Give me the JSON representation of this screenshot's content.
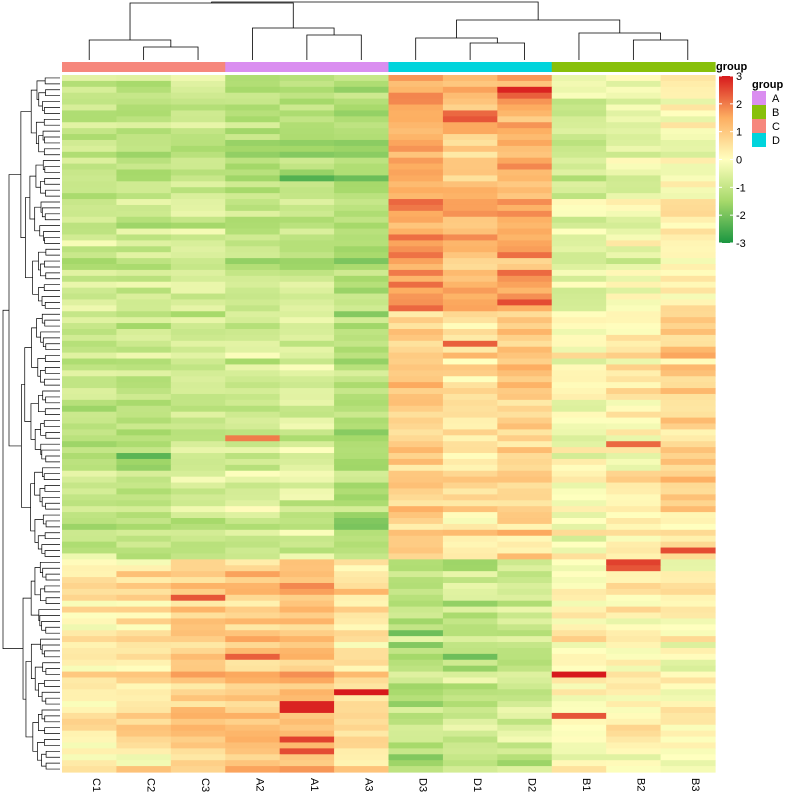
{
  "chart_data": {
    "type": "heatmap",
    "title": "",
    "columns": [
      "C1",
      "C2",
      "C3",
      "A2",
      "A1",
      "A3",
      "D3",
      "D1",
      "D2",
      "B1",
      "B2",
      "B3"
    ],
    "column_groups": [
      "C",
      "C",
      "C",
      "A",
      "A",
      "A",
      "D",
      "D",
      "D",
      "B",
      "B",
      "B"
    ],
    "row_count": 118,
    "row_cluster_boundaries": [
      40,
      82
    ],
    "anomalies": [
      {
        "row": 2,
        "col": 8,
        "value": 2.9
      },
      {
        "row": 3,
        "col": 8,
        "value": 2.3
      },
      {
        "row": 6,
        "col": 7,
        "value": 2.2
      },
      {
        "row": 7,
        "col": 7,
        "value": 2.4
      },
      {
        "row": 38,
        "col": 8,
        "value": 2.5
      },
      {
        "row": 45,
        "col": 7,
        "value": 2.3
      },
      {
        "row": 61,
        "col": 3,
        "value": 2.0
      },
      {
        "row": 62,
        "col": 10,
        "value": 2.2
      },
      {
        "row": 82,
        "col": 10,
        "value": 2.6
      },
      {
        "row": 83,
        "col": 10,
        "value": 2.4
      },
      {
        "row": 80,
        "col": 11,
        "value": 2.5
      },
      {
        "row": 88,
        "col": 2,
        "value": 2.4
      },
      {
        "row": 98,
        "col": 3,
        "value": 2.3
      },
      {
        "row": 101,
        "col": 9,
        "value": 3.0
      },
      {
        "row": 104,
        "col": 5,
        "value": 3.0
      },
      {
        "row": 106,
        "col": 4,
        "value": 2.9
      },
      {
        "row": 107,
        "col": 4,
        "value": 2.9
      },
      {
        "row": 108,
        "col": 9,
        "value": 2.4
      },
      {
        "row": 112,
        "col": 4,
        "value": 2.6
      },
      {
        "row": 114,
        "col": 4,
        "value": 2.5
      },
      {
        "row": 64,
        "col": 1,
        "value": -2.3
      },
      {
        "row": 17,
        "col": 4,
        "value": -2.4
      },
      {
        "row": 94,
        "col": 6,
        "value": -2.1
      },
      {
        "row": 98,
        "col": 7,
        "value": -2.1
      }
    ],
    "profiles": [
      {
        "rows": [
          0,
          40
        ],
        "mean": [
          -0.9,
          -1.0,
          -0.8,
          -1.1,
          -1.1,
          -1.3,
          1.6,
          1.2,
          1.5,
          -0.6,
          -0.3,
          0.1
        ]
      },
      {
        "rows": [
          40,
          82
        ],
        "mean": [
          -0.9,
          -1.1,
          -0.8,
          -0.7,
          -0.6,
          -1.2,
          1.0,
          0.6,
          0.9,
          0.0,
          0.3,
          0.8
        ]
      },
      {
        "rows": [
          82,
          118
        ],
        "mean": [
          0.3,
          0.5,
          0.9,
          1.0,
          1.2,
          0.6,
          -1.2,
          -1.0,
          -0.9,
          0.1,
          0.1,
          0.0
        ]
      }
    ],
    "color_scale": {
      "min": -3,
      "max": 3,
      "stops": [
        "#1a9641",
        "#a6d96a",
        "#ffffbf",
        "#fdae61",
        "#d7191c"
      ],
      "ticks": [
        "3",
        "2",
        "1",
        "0",
        "-1",
        "-2",
        "-3"
      ]
    },
    "legend": {
      "title_bar": "group",
      "title": "group",
      "placement": "top-right",
      "entries": [
        {
          "name": "A",
          "color": "#da8ef0"
        },
        {
          "name": "B",
          "color": "#88c00a"
        },
        {
          "name": "C",
          "color": "#f6877c"
        },
        {
          "name": "D",
          "color": "#00d4dc"
        }
      ]
    },
    "annotation_title": "group",
    "group_colors": {
      "A": "#da8ef0",
      "B": "#88c00a",
      "C": "#f6877c",
      "D": "#00d4dc"
    }
  }
}
